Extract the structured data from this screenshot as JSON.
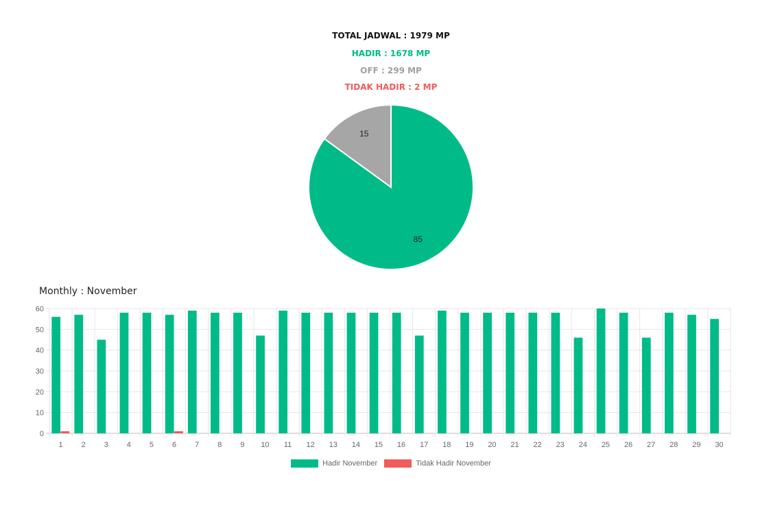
{
  "summary": {
    "total": "TOTAL JADWAL : 1979 MP",
    "hadir": "HADIR : 1678 MP",
    "off": "OFF : 299 MP",
    "tidak_hadir": "TIDAK HADIR : 2 MP"
  },
  "colors": {
    "hadir": "#00bb87",
    "off": "#a6a6a6",
    "tidak_hadir": "#f15b5b"
  },
  "monthly_title": "Monthly : November",
  "chart_data": [
    {
      "type": "pie",
      "categories": [
        "Hadir",
        "Off"
      ],
      "values": [
        85,
        15
      ],
      "labels": [
        "85",
        "15"
      ],
      "colors": [
        "#00bb87",
        "#a6a6a6"
      ]
    },
    {
      "type": "bar",
      "categories": [
        "1",
        "2",
        "3",
        "4",
        "5",
        "6",
        "7",
        "8",
        "9",
        "10",
        "11",
        "12",
        "13",
        "14",
        "15",
        "16",
        "17",
        "18",
        "19",
        "20",
        "21",
        "22",
        "23",
        "24",
        "25",
        "26",
        "27",
        "28",
        "29",
        "30"
      ],
      "series": [
        {
          "name": "Hadir November",
          "color": "#00bb87",
          "values": [
            56,
            57,
            45,
            58,
            58,
            57,
            59,
            58,
            58,
            47,
            59,
            58,
            58,
            58,
            58,
            58,
            47,
            59,
            58,
            58,
            58,
            58,
            58,
            46,
            60,
            58,
            46,
            58,
            57,
            55
          ]
        },
        {
          "name": "Tidak Hadir November",
          "color": "#f15b5b",
          "values": [
            1,
            0,
            0,
            0,
            0,
            1,
            0,
            0,
            0,
            0,
            0,
            0,
            0,
            0,
            0,
            0,
            0,
            0,
            0,
            0,
            0,
            0,
            0,
            0,
            0,
            0,
            0,
            0,
            0,
            0
          ]
        }
      ],
      "ylim": [
        0,
        60
      ],
      "yticks": [
        0,
        10,
        20,
        30,
        40,
        50,
        60
      ],
      "grid": true,
      "legend": "bottom"
    }
  ]
}
